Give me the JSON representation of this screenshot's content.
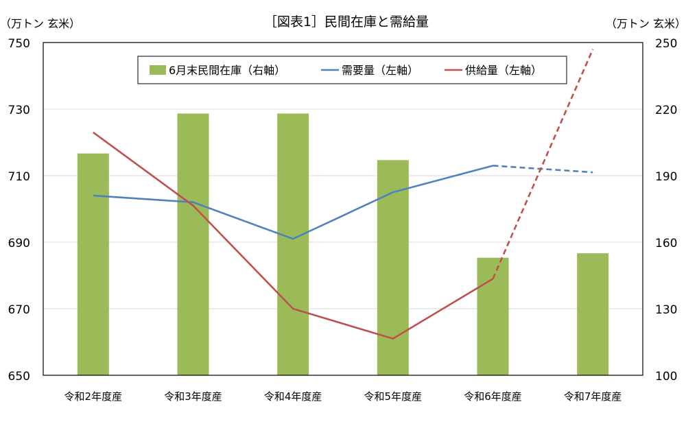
{
  "chart_data": {
    "type": "bar+line",
    "title": "［図表1］民間在庫と需給量",
    "ylabel_left": "（万トン 玄米）",
    "ylabel_right": "（万トン 玄米）",
    "categories": [
      "令和2年度産",
      "令和3年度産",
      "令和4年度産",
      "令和5年度産",
      "令和6年度産",
      "令和7年度産"
    ],
    "ylim_left": [
      650,
      750
    ],
    "yticks_left": [
      650,
      670,
      690,
      710,
      730,
      750
    ],
    "ylim_right": [
      100,
      250
    ],
    "yticks_right": [
      100,
      130,
      160,
      190,
      220,
      250
    ],
    "grid": true,
    "legend_position": "top",
    "series": [
      {
        "name": "6月末民間在庫（右軸）",
        "type": "bar",
        "axis": "right",
        "color": "#9BBB59",
        "values": [
          200,
          218,
          218,
          197,
          153,
          155
        ]
      },
      {
        "name": "需要量（左軸）",
        "type": "line",
        "axis": "left",
        "color": "#4F81BD",
        "values": [
          704,
          702,
          691,
          705,
          713,
          711
        ],
        "dashed_from_index": 4
      },
      {
        "name": "供給量（左軸）",
        "type": "line",
        "axis": "left",
        "color": "#C0504D",
        "values": [
          723,
          701,
          670,
          661,
          679,
          748
        ],
        "dashed_from_index": 4
      }
    ]
  }
}
